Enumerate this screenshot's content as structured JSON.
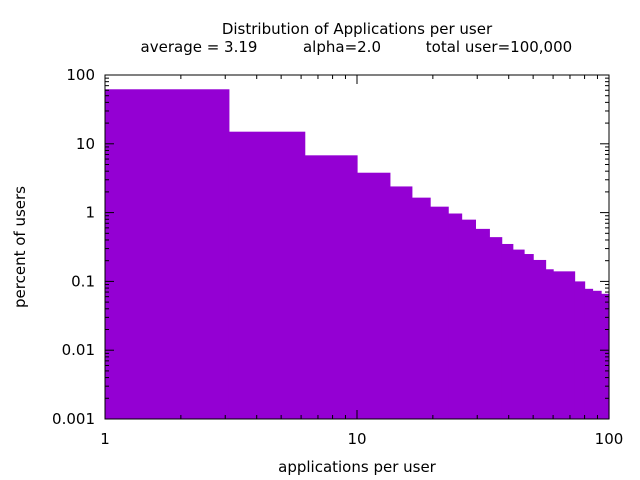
{
  "chart_data": {
    "type": "bar",
    "title": "Distribution of Applications per user",
    "subtitle": {
      "average": "average = 3.19",
      "alpha": "alpha=2.0",
      "total": "total user=100,000"
    },
    "xlabel": "applications per user",
    "ylabel": "percent of users",
    "x_scale": "log",
    "y_scale": "log",
    "xlim": [
      1,
      100
    ],
    "ylim": [
      0.001,
      100
    ],
    "x_ticks": [
      {
        "value": 1,
        "label": "1"
      },
      {
        "value": 10,
        "label": "10"
      },
      {
        "value": 100,
        "label": "100"
      }
    ],
    "y_ticks": [
      {
        "value": 0.001,
        "label": "0.001"
      },
      {
        "value": 0.01,
        "label": "0.01"
      },
      {
        "value": 0.1,
        "label": "0.1"
      },
      {
        "value": 1,
        "label": "1"
      },
      {
        "value": 10,
        "label": "10"
      },
      {
        "value": 100,
        "label": "100"
      }
    ],
    "grid": false,
    "bar_color": "#9400d3",
    "steps": [
      {
        "x_start": 1,
        "x_end": 3.1,
        "y": 62
      },
      {
        "x_start": 3.1,
        "x_end": 6.2,
        "y": 15
      },
      {
        "x_start": 6.2,
        "x_end": 10,
        "y": 6.8
      },
      {
        "x_start": 10,
        "x_end": 13.5,
        "y": 3.8
      },
      {
        "x_start": 13.5,
        "x_end": 16.5,
        "y": 2.4
      },
      {
        "x_start": 16.5,
        "x_end": 19.5,
        "y": 1.65
      },
      {
        "x_start": 19.5,
        "x_end": 23,
        "y": 1.22
      },
      {
        "x_start": 23,
        "x_end": 26,
        "y": 0.97
      },
      {
        "x_start": 26,
        "x_end": 29.5,
        "y": 0.79
      },
      {
        "x_start": 29.5,
        "x_end": 33.5,
        "y": 0.58
      },
      {
        "x_start": 33.5,
        "x_end": 37.5,
        "y": 0.44
      },
      {
        "x_start": 37.5,
        "x_end": 41.5,
        "y": 0.35
      },
      {
        "x_start": 41.5,
        "x_end": 46,
        "y": 0.29
      },
      {
        "x_start": 46,
        "x_end": 50,
        "y": 0.25
      },
      {
        "x_start": 50,
        "x_end": 56,
        "y": 0.205
      },
      {
        "x_start": 56,
        "x_end": 60,
        "y": 0.15
      },
      {
        "x_start": 60,
        "x_end": 73,
        "y": 0.14
      },
      {
        "x_start": 73,
        "x_end": 80,
        "y": 0.1
      },
      {
        "x_start": 80,
        "x_end": 86,
        "y": 0.078
      },
      {
        "x_start": 86,
        "x_end": 93,
        "y": 0.073
      },
      {
        "x_start": 93,
        "x_end": 100,
        "y": 0.066
      }
    ]
  }
}
